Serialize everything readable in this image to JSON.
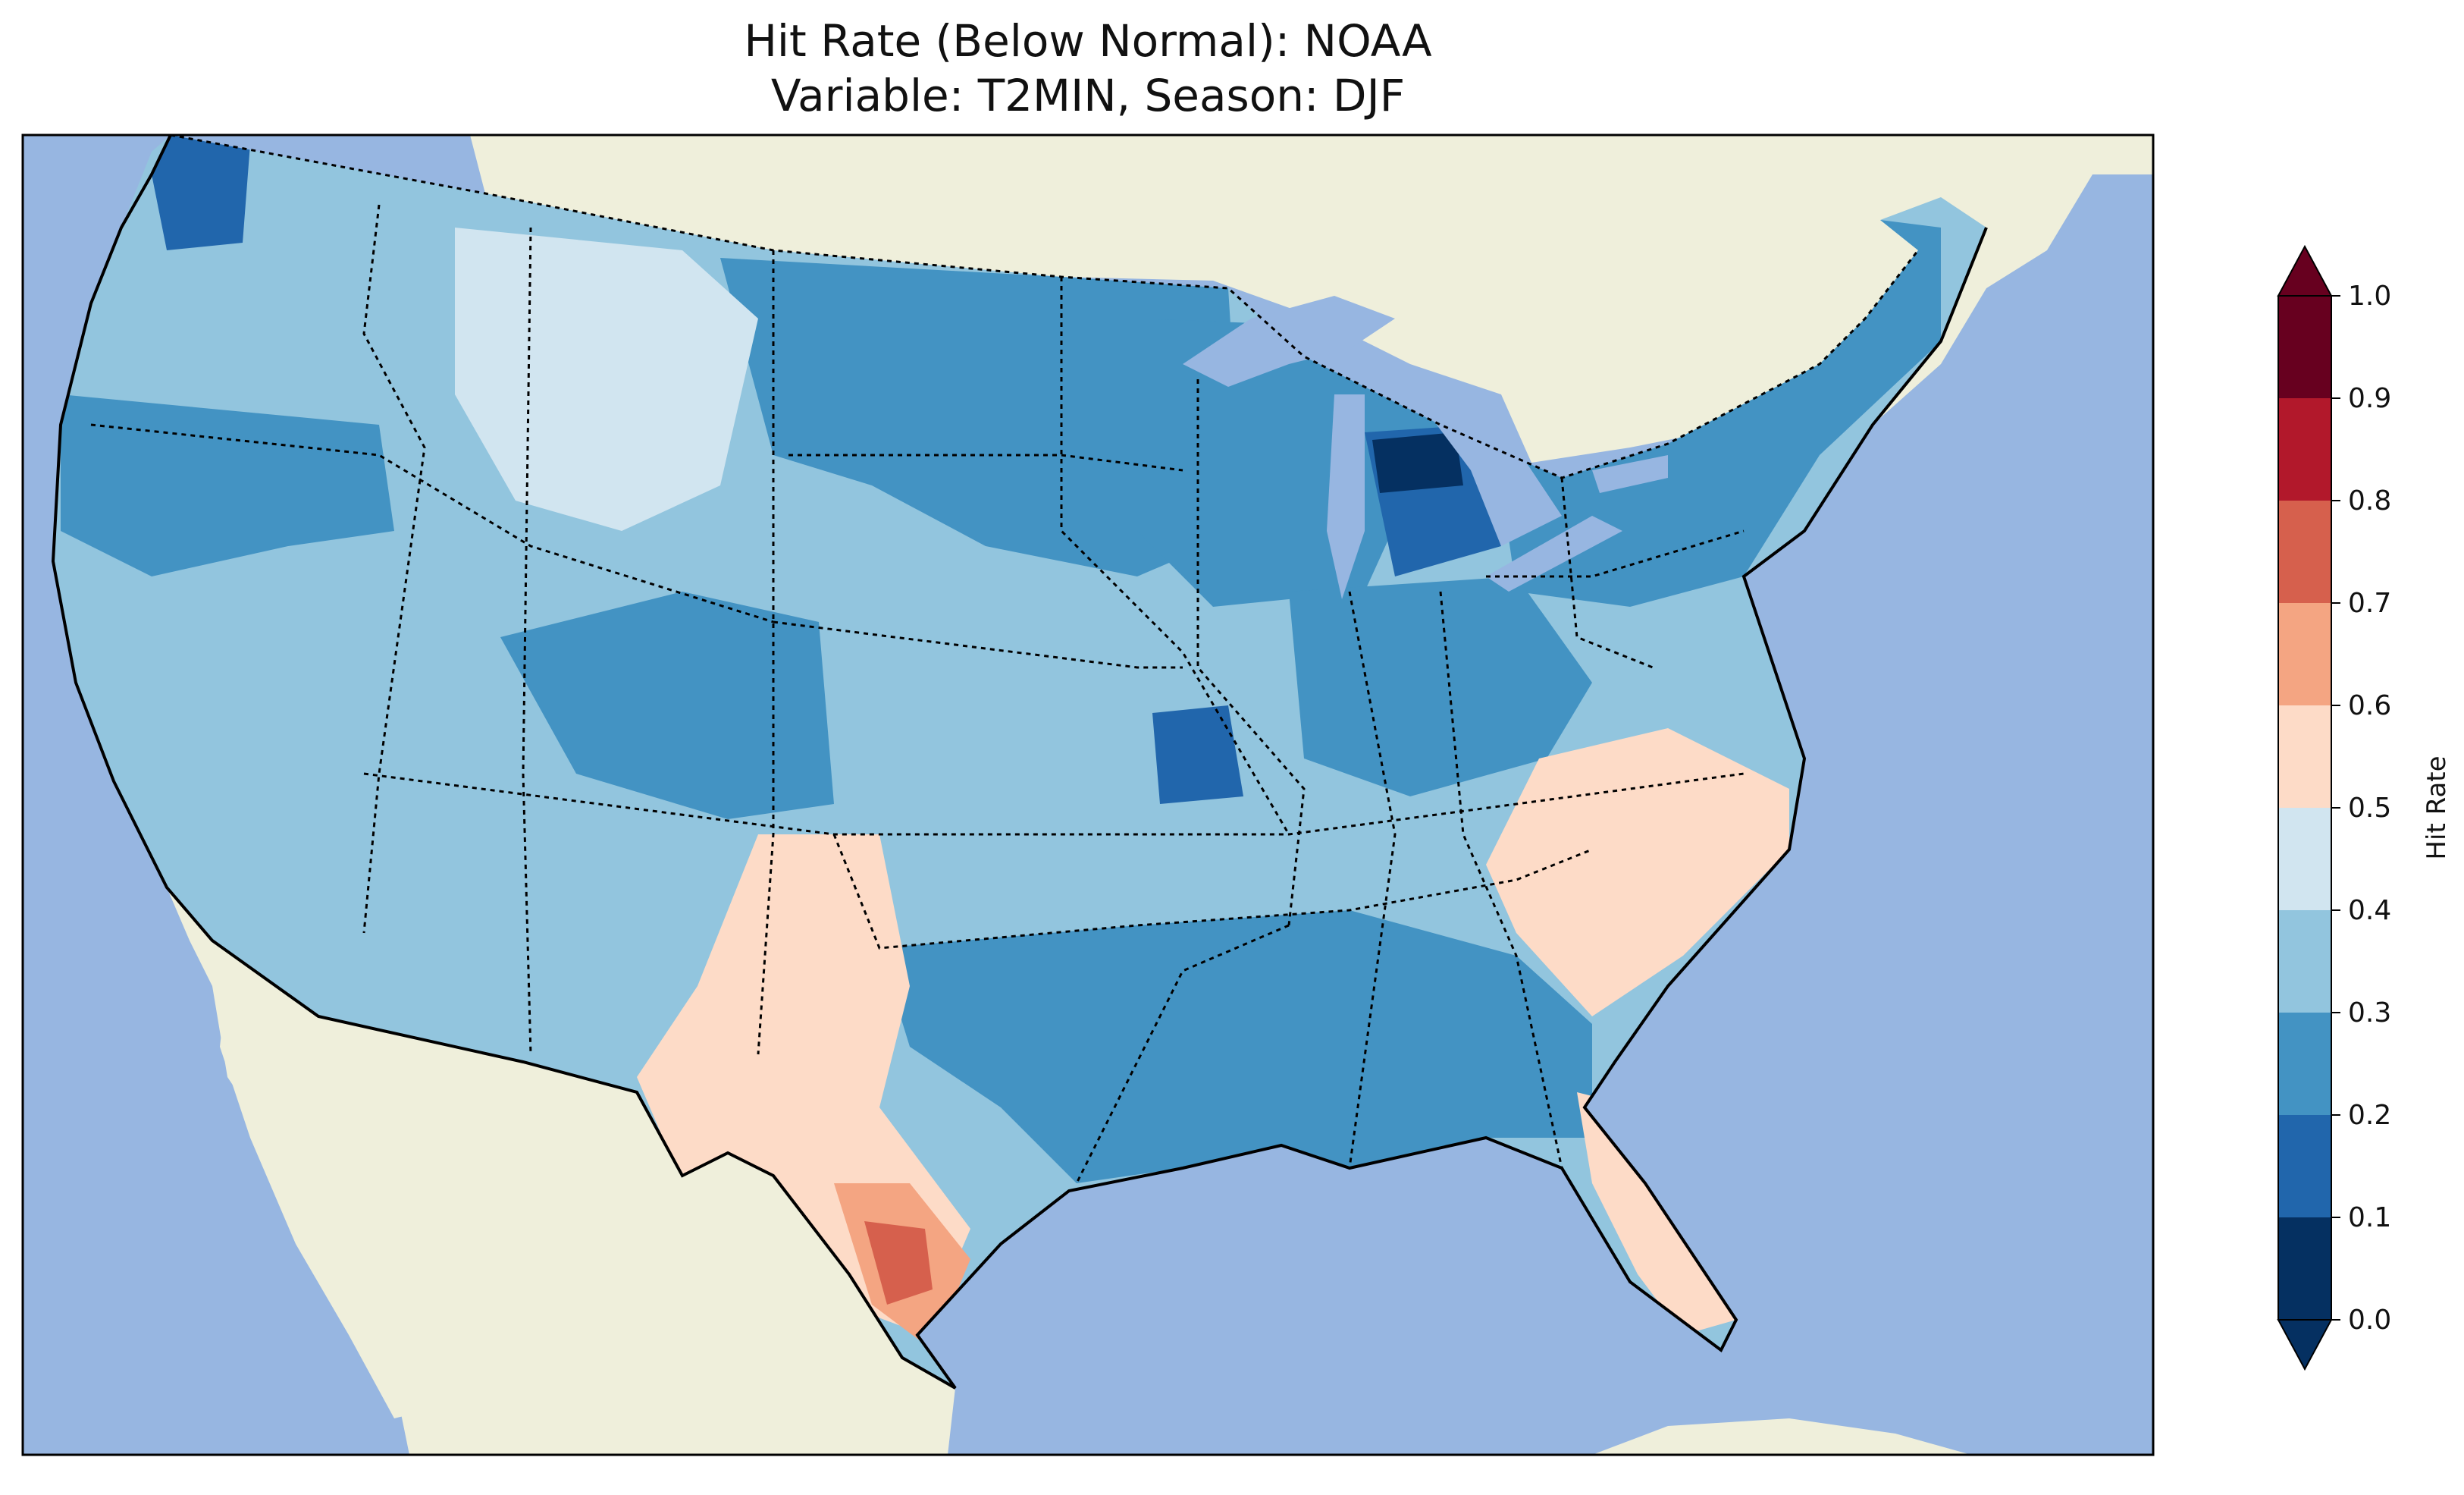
{
  "title": {
    "line1": "Hit Rate (Below Normal): NOAA",
    "line2": "Variable: T2MIN, Season: DJF"
  },
  "colors": {
    "ocean": "#97b6e1",
    "land": "#efefdb",
    "lake": "#97b6e1",
    "border": "#000000"
  },
  "colorbar": {
    "label": "Hit Rate",
    "ticks": [
      "0.0",
      "0.1",
      "0.2",
      "0.3",
      "0.4",
      "0.5",
      "0.6",
      "0.7",
      "0.8",
      "0.9",
      "1.0"
    ],
    "bins": [
      {
        "range": [
          0.0,
          0.1
        ],
        "color": "#053061"
      },
      {
        "range": [
          0.1,
          0.2
        ],
        "color": "#2166ac"
      },
      {
        "range": [
          0.2,
          0.3
        ],
        "color": "#4393c3"
      },
      {
        "range": [
          0.3,
          0.4
        ],
        "color": "#92c5de"
      },
      {
        "range": [
          0.4,
          0.5
        ],
        "color": "#d1e5f0"
      },
      {
        "range": [
          0.5,
          0.6
        ],
        "color": "#fddbc7"
      },
      {
        "range": [
          0.6,
          0.7
        ],
        "color": "#f4a582"
      },
      {
        "range": [
          0.7,
          0.8
        ],
        "color": "#d6604d"
      },
      {
        "range": [
          0.8,
          0.9
        ],
        "color": "#b2182b"
      },
      {
        "range": [
          0.9,
          1.0
        ],
        "color": "#67001f"
      }
    ],
    "extend": "both"
  },
  "regions": [
    {
      "name": "conus-base",
      "value": 0.35
    },
    {
      "name": "northern-plains",
      "value": 0.25
    },
    {
      "name": "upper-midwest",
      "value": 0.25
    },
    {
      "name": "northeast",
      "value": 0.25
    },
    {
      "name": "ohio-valley",
      "value": 0.25
    },
    {
      "name": "lower-mississippi",
      "value": 0.25
    },
    {
      "name": "colorado",
      "value": 0.25
    },
    {
      "name": "oregon",
      "value": 0.25
    },
    {
      "name": "idaho-montana",
      "value": 0.45
    },
    {
      "name": "new-mexico-texas",
      "value": 0.55
    },
    {
      "name": "carolinas-virginia",
      "value": 0.55
    },
    {
      "name": "florida",
      "value": 0.55
    },
    {
      "name": "south-texas",
      "value": 0.65
    },
    {
      "name": "south-texas-core",
      "value": 0.75
    },
    {
      "name": "michigan",
      "value": 0.15
    },
    {
      "name": "michigan-core",
      "value": 0.05
    },
    {
      "name": "washington",
      "value": 0.15
    },
    {
      "name": "missouri",
      "value": 0.15
    }
  ]
}
